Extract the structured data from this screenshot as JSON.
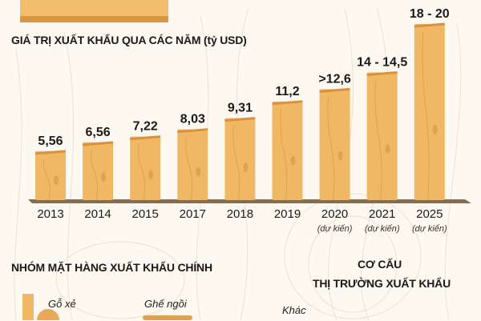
{
  "chart_data": {
    "type": "bar",
    "title": "GIÁ TRỊ XUẤT KHẨU QUA CÁC NĂM (tỷ USD)",
    "categories": [
      "2013",
      "2014",
      "2015",
      "2017",
      "2018",
      "2019",
      "2020",
      "2021",
      "2025"
    ],
    "category_notes": [
      "",
      "",
      "",
      "",
      "",
      "",
      "(dự kiến)",
      "(dự kiến)",
      "(dự kiến)"
    ],
    "values": [
      5.56,
      6.56,
      7.22,
      8.03,
      9.31,
      11.2,
      12.6,
      14.5,
      20
    ],
    "data_labels": [
      "5,56",
      "6,56",
      "7,22",
      "8,03",
      "9,31",
      "11,2",
      ">12,6",
      "14 - 14,5",
      "18 - 20"
    ],
    "ylim": [
      0,
      20
    ],
    "grid": false,
    "colors": {
      "bar": "#f0b865",
      "bar_dark": "#d9913c",
      "shelf": "#8a6b4a"
    }
  },
  "sections": {
    "products_title": "NHÓM MẶT HÀNG XUẤT KHẨU CHÍNH",
    "market_title_1": "CƠ CẤU",
    "market_title_2": "THỊ TRƯỜNG XUẤT KHẨU",
    "labels": [
      "Gỗ xẻ",
      "Ghế ngồi",
      "Khác"
    ]
  }
}
